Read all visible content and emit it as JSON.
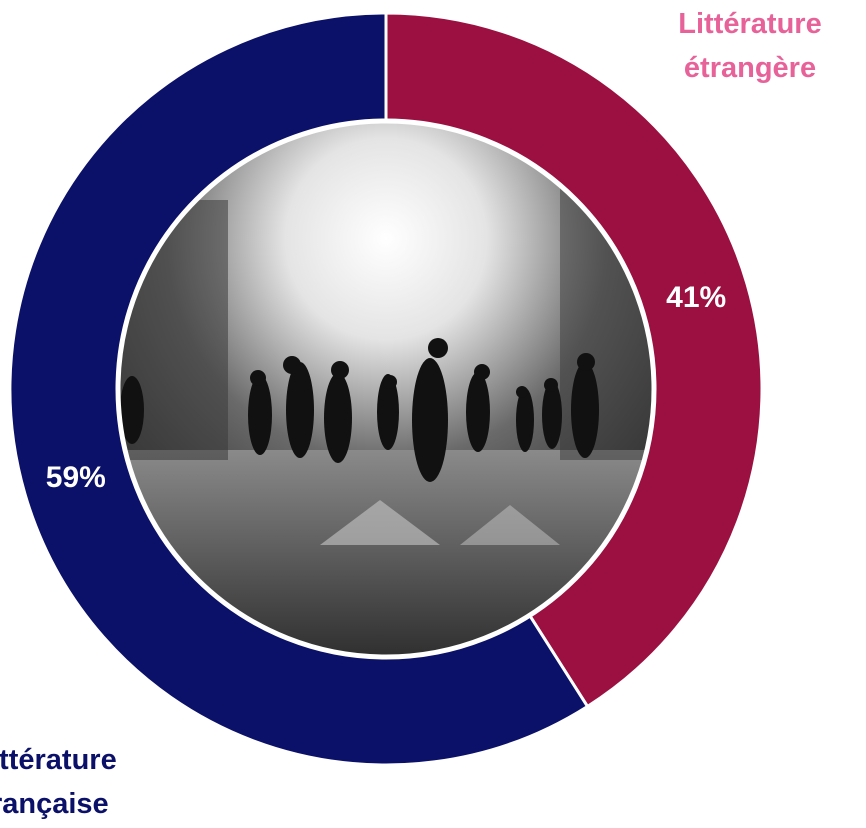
{
  "chart_data": {
    "type": "pie",
    "categories": [
      "Littérature étrangère",
      "Littérature française"
    ],
    "values": [
      41,
      59
    ],
    "value_labels": [
      "41%",
      "59%"
    ],
    "colors": [
      "#9b1040",
      "#0b1068"
    ]
  }
}
